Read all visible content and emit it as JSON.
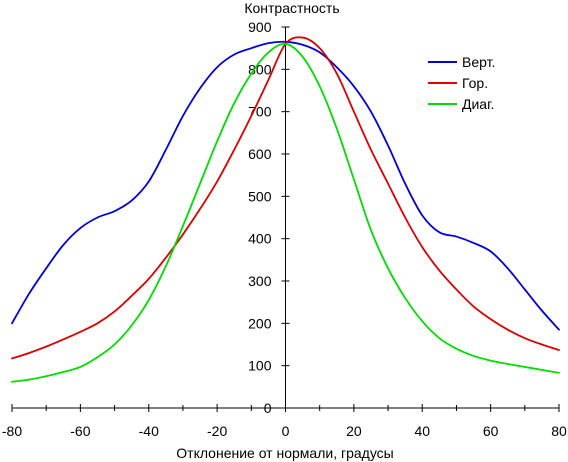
{
  "chart_data": {
    "type": "line",
    "title": "Контрастность",
    "xlabel": "Отклонение от нормали, градусы",
    "ylabel": "",
    "xlim": [
      -80,
      80
    ],
    "ylim": [
      0,
      900
    ],
    "xticks": [
      -80,
      -60,
      -40,
      -20,
      0,
      20,
      40,
      60,
      80
    ],
    "yticks": [
      0,
      100,
      200,
      300,
      400,
      500,
      600,
      700,
      800,
      900
    ],
    "x_minor_step": 10,
    "legend_position": "top-right",
    "grid": false,
    "series": [
      {
        "name": "Верт.",
        "color": "#0000dd",
        "x": [
          -80,
          -75,
          -70,
          -65,
          -60,
          -55,
          -50,
          -45,
          -40,
          -35,
          -30,
          -25,
          -20,
          -15,
          -10,
          -5,
          0,
          5,
          10,
          15,
          20,
          25,
          30,
          35,
          40,
          45,
          50,
          55,
          60,
          65,
          70,
          75,
          80
        ],
        "y": [
          200,
          270,
          330,
          385,
          425,
          450,
          465,
          490,
          535,
          610,
          690,
          755,
          805,
          835,
          850,
          862,
          865,
          858,
          840,
          805,
          760,
          700,
          620,
          530,
          455,
          415,
          405,
          390,
          370,
          330,
          280,
          230,
          185
        ]
      },
      {
        "name": "Гор.",
        "color": "#dd0000",
        "x": [
          -80,
          -75,
          -70,
          -65,
          -60,
          -55,
          -50,
          -45,
          -40,
          -35,
          -30,
          -25,
          -20,
          -15,
          -10,
          -5,
          0,
          5,
          10,
          15,
          20,
          25,
          30,
          35,
          40,
          45,
          50,
          55,
          60,
          65,
          70,
          75,
          80
        ],
        "y": [
          117,
          130,
          145,
          162,
          180,
          200,
          228,
          265,
          305,
          355,
          410,
          470,
          535,
          610,
          690,
          775,
          860,
          875,
          850,
          790,
          700,
          610,
          530,
          450,
          380,
          325,
          280,
          240,
          210,
          185,
          165,
          150,
          137
        ]
      },
      {
        "name": "Диаг.",
        "color": "#00dd00",
        "x": [
          -80,
          -75,
          -70,
          -65,
          -60,
          -55,
          -50,
          -45,
          -40,
          -35,
          -30,
          -25,
          -20,
          -15,
          -10,
          -5,
          0,
          5,
          10,
          15,
          20,
          25,
          30,
          35,
          40,
          45,
          50,
          55,
          60,
          65,
          70,
          75,
          80
        ],
        "y": [
          62,
          67,
          75,
          85,
          97,
          120,
          150,
          195,
          255,
          335,
          430,
          530,
          630,
          720,
          790,
          840,
          860,
          830,
          760,
          660,
          540,
          420,
          330,
          260,
          205,
          165,
          140,
          123,
          112,
          104,
          97,
          90,
          83
        ]
      }
    ]
  }
}
